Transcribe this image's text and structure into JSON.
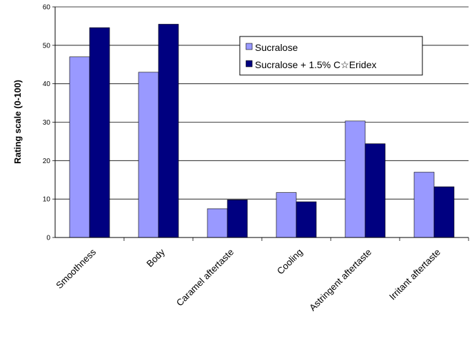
{
  "chart_data": {
    "type": "bar",
    "title": "",
    "xlabel": "",
    "ylabel": "Rating scale (0-100)",
    "ylim": [
      0,
      60
    ],
    "yticks": [
      0,
      10,
      20,
      30,
      40,
      50,
      60
    ],
    "grid": "horizontal",
    "legend_position": "top-right",
    "categories": [
      "Smoothness",
      "Body",
      "Caramel aftertaste",
      "Cooling",
      "Astringent aftertaste",
      "Irritant aftertaste"
    ],
    "series": [
      {
        "name": "Sucralose",
        "color": "#9999ff",
        "values": [
          47,
          43,
          7.5,
          11.7,
          30.3,
          17
        ]
      },
      {
        "name": "Sucralose + 1.5% C☆Eridex",
        "color": "#000080",
        "values": [
          54.6,
          55.5,
          9.8,
          9.3,
          24.4,
          13.2
        ]
      }
    ]
  }
}
